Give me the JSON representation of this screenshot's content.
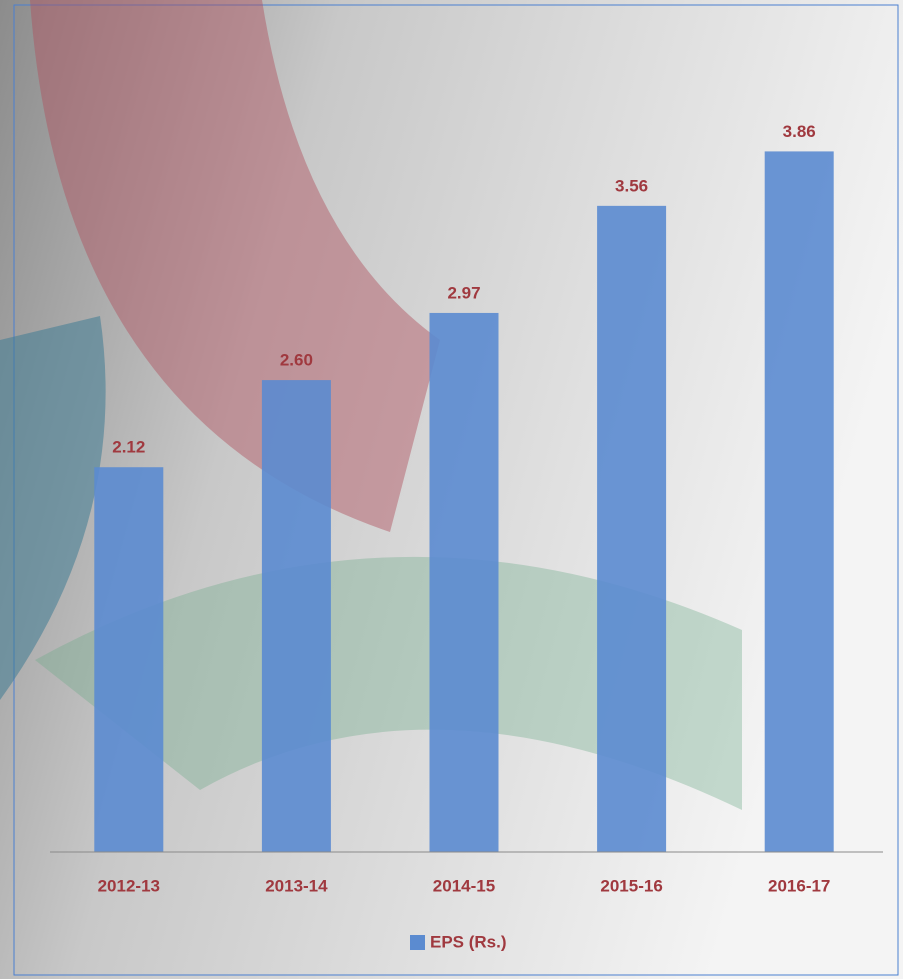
{
  "chart_data": {
    "type": "bar",
    "categories": [
      "2012-13",
      "2013-14",
      "2014-15",
      "2015-16",
      "2016-17"
    ],
    "values": [
      2.12,
      2.6,
      2.97,
      3.56,
      3.86
    ],
    "value_labels": [
      "2.12",
      "2.60",
      "2.97",
      "3.56",
      "3.86"
    ],
    "series_name": "EPS (Rs.)",
    "color": "#5b8bd0",
    "ylim": [
      0,
      4
    ]
  }
}
